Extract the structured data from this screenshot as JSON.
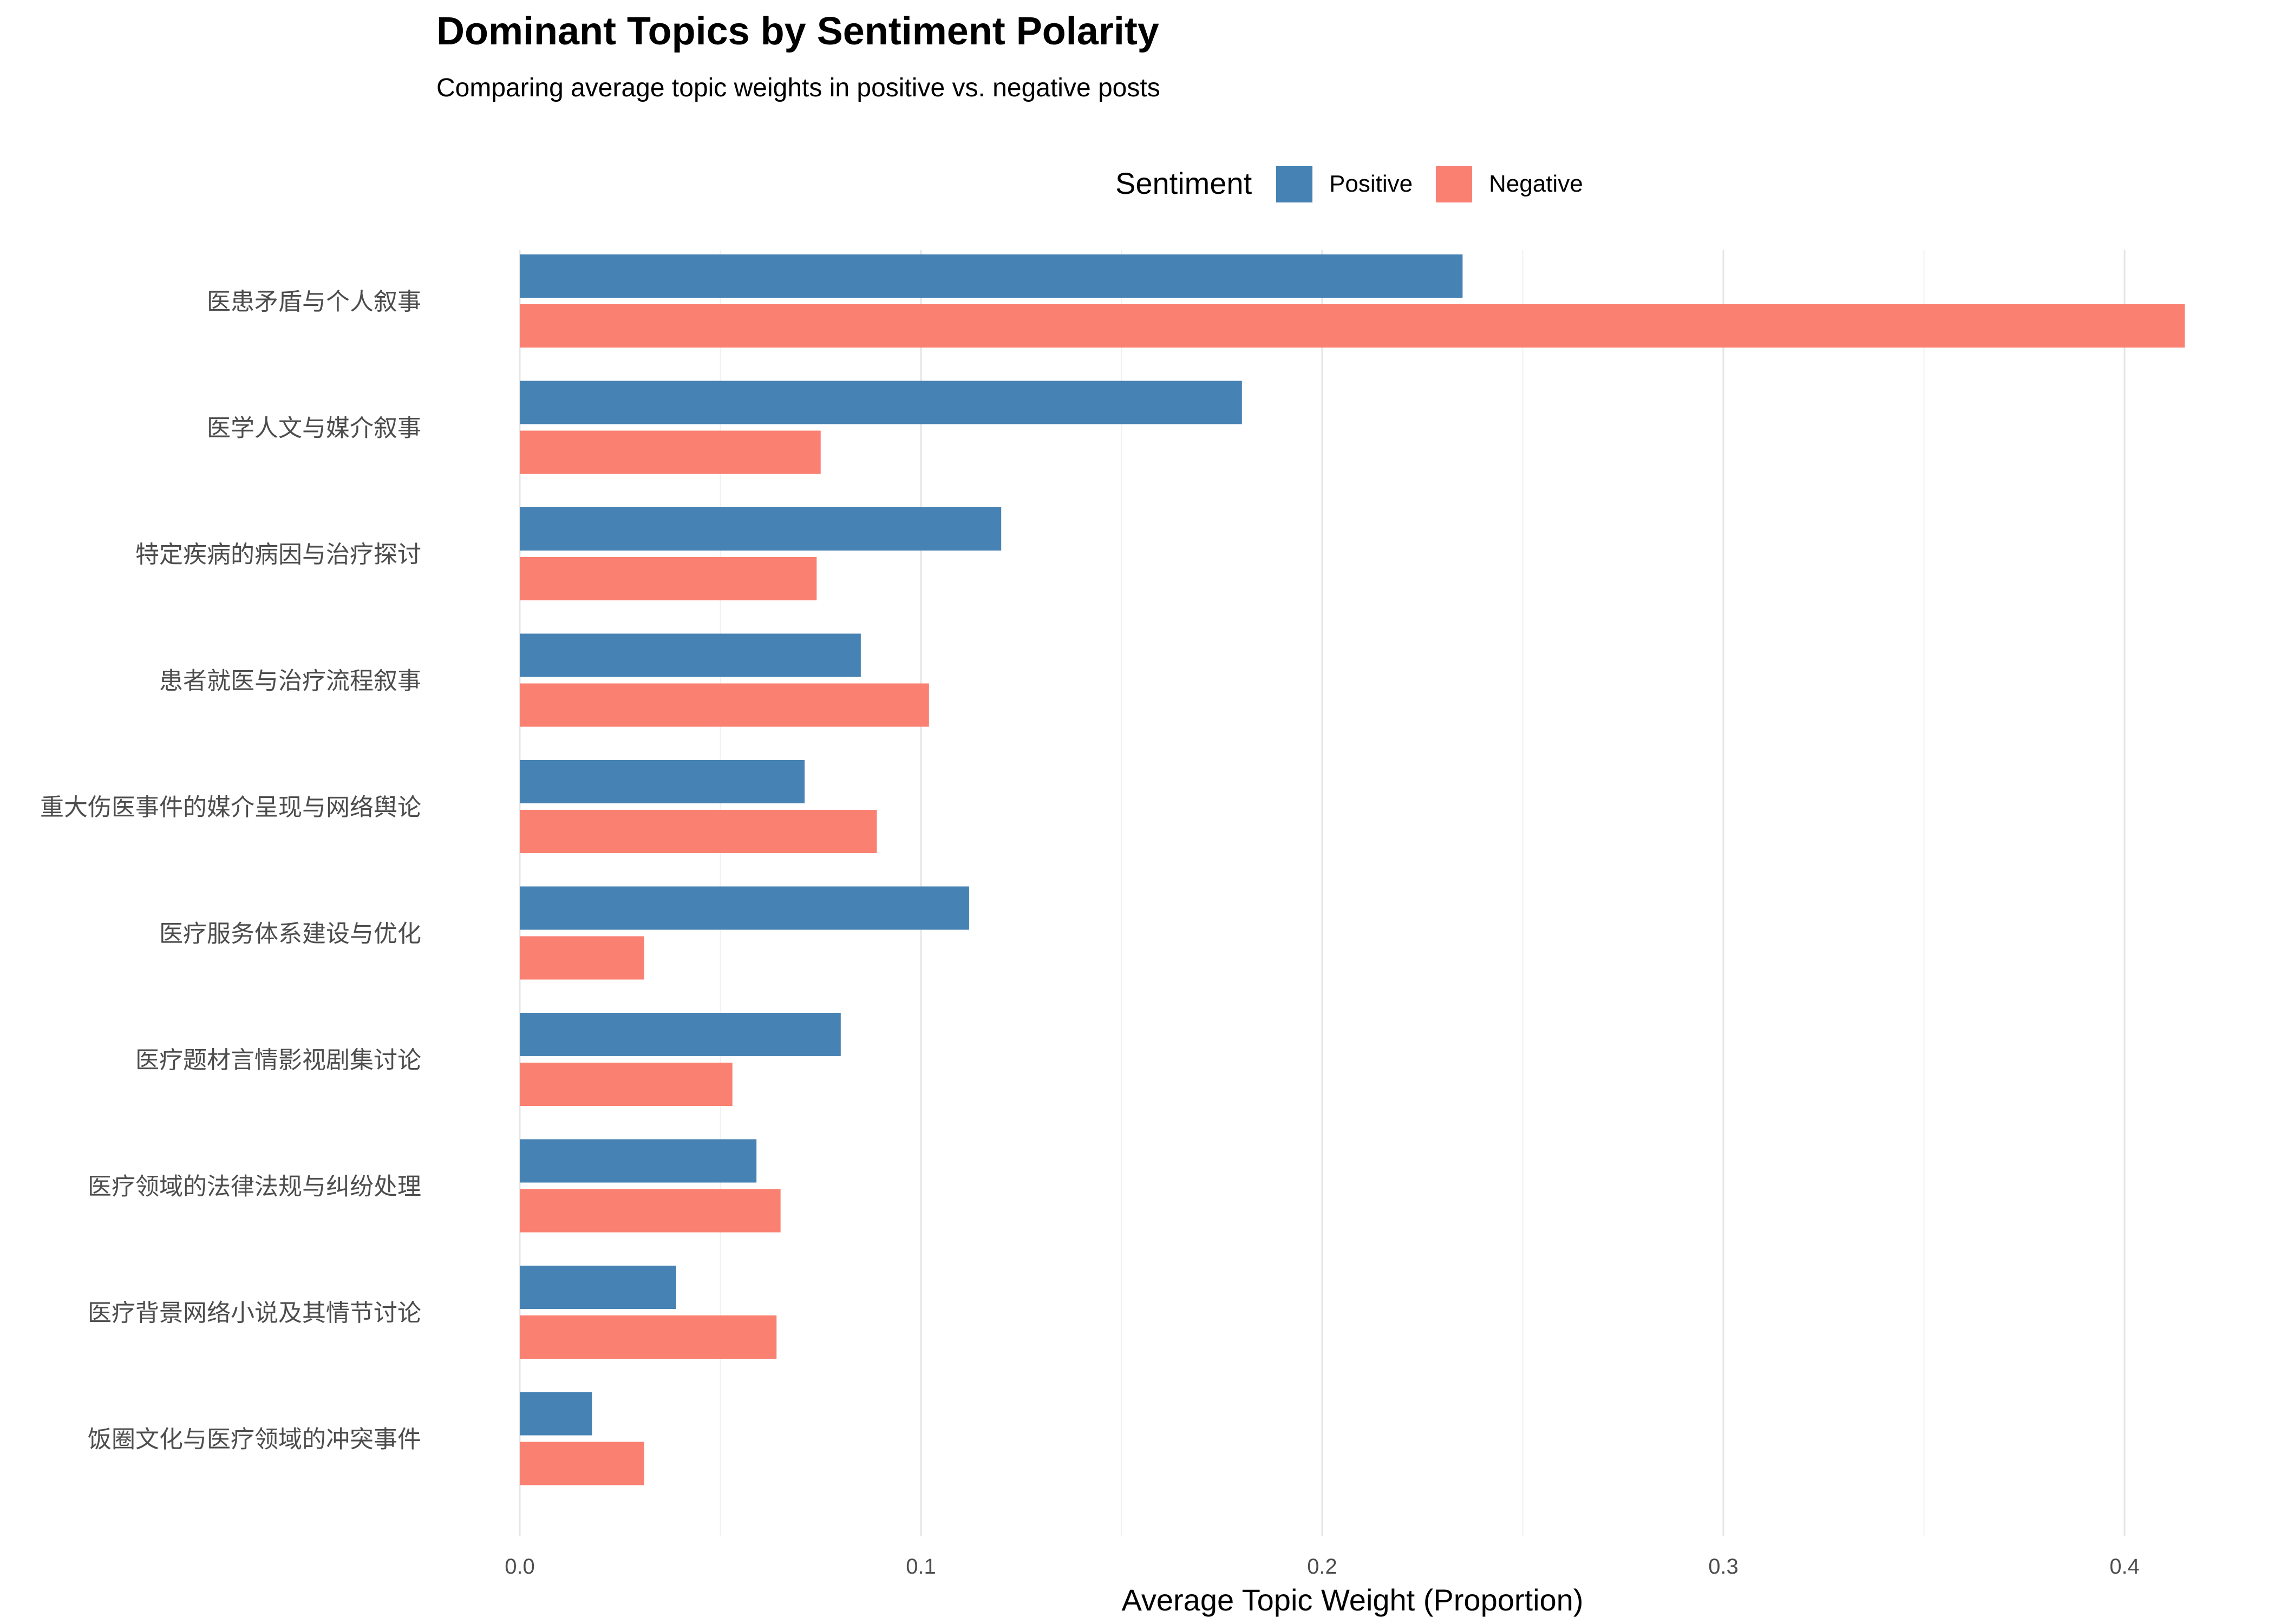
{
  "chart_data": {
    "type": "bar",
    "orientation": "horizontal",
    "title": "Dominant Topics by Sentiment Polarity",
    "subtitle": "Comparing average topic weights in positive vs. negative posts",
    "xlabel": "Average Topic Weight (Proportion)",
    "ylabel": "",
    "xlim": [
      0,
      0.415
    ],
    "xticks": [
      "0.0",
      "0.1",
      "0.2",
      "0.3",
      "0.4"
    ],
    "xtick_values": [
      0,
      0.1,
      0.2,
      0.3,
      0.4
    ],
    "grid": true,
    "legend": {
      "title": "Sentiment",
      "placement": "top"
    },
    "categories": [
      "医患矛盾与个人叙事",
      "医学人文与媒介叙事",
      "特定疾病的病因与治疗探讨",
      "患者就医与治疗流程叙事",
      "重大伤医事件的媒介呈现与网络舆论",
      "医疗服务体系建设与优化",
      "医疗题材言情影视剧集讨论",
      "医疗领域的法律法规与纠纷处理",
      "医疗背景网络小说及其情节讨论",
      "饭圈文化与医疗领域的冲突事件"
    ],
    "series": [
      {
        "name": "Positive",
        "color": "#4682b4",
        "values": [
          0.235,
          0.18,
          0.12,
          0.085,
          0.071,
          0.112,
          0.08,
          0.059,
          0.039,
          0.018
        ]
      },
      {
        "name": "Negative",
        "color": "#fa8072",
        "values": [
          0.415,
          0.075,
          0.074,
          0.102,
          0.089,
          0.031,
          0.053,
          0.065,
          0.064,
          0.031
        ]
      }
    ]
  }
}
